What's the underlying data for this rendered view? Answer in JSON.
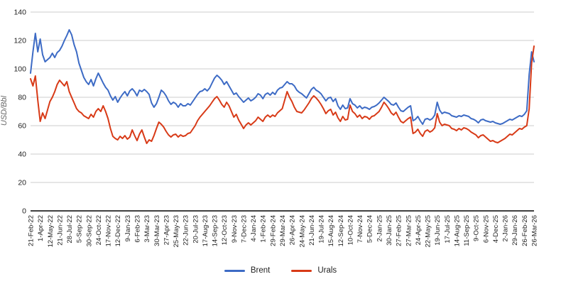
{
  "chart_data": {
    "type": "line",
    "title": "",
    "ylabel": "USD/Bbl",
    "xlabel": "",
    "ylim": [
      0,
      140
    ],
    "y_ticks": [
      0,
      20,
      40,
      60,
      80,
      100,
      120,
      140
    ],
    "grid": "horizontal",
    "legend_position": "bottom",
    "grid_color": "#cccccc",
    "axis_color": "#000000",
    "tick_label_color": "#222222",
    "axis_title_color": "#666666",
    "label_every": 4,
    "x_labels": [
      "21-Feb-22",
      "1-Apr-22",
      "12-May-22",
      "21-Jun-22",
      "28-Jul-22",
      "5-Sep-22",
      "30-Sep-22",
      "24-Oct-22",
      "17-Nov-22",
      "12-Dec-22",
      "9-Jan-23",
      "6-Feb-23",
      "3-Mar-23",
      "30-Mar-23",
      "27-Apr-23",
      "25-May-23",
      "22-Jun-23",
      "20-Jul-23",
      "17-Aug-23",
      "14-Sep-23",
      "12-Oct-23",
      "9-Nov-23",
      "7-Dec-23",
      "4-Jan-24",
      "1-Feb-24",
      "29-Feb-24",
      "29-Mar-24",
      "26-Apr-24",
      "24-May-24",
      "21-Jun-24",
      "19-Jul-24",
      "15-Aug-24",
      "12-Sep-24",
      "10-Oct-24",
      "7-Nov-24",
      "5-Dec-24",
      "2-Jan-25",
      "30-Jan-25",
      "27-Feb-25",
      "27-Mar-25",
      "24-Apr-25",
      "22-May-25",
      "19-Jun-25",
      "17-Jul-25",
      "14-Aug-25",
      "11-Sep-25",
      "9-Oct-25",
      "6-Nov-25",
      "4-Dec-25",
      "2-Jan-26",
      "29-Jan-26",
      "26-Feb-26",
      "26-Mar-26"
    ],
    "series": [
      {
        "name": "Brent",
        "color": "#3d6bc5",
        "values": [
          97,
          112,
          125,
          112,
          121,
          110,
          105,
          106.5,
          108,
          111,
          108,
          111.5,
          113,
          116,
          120,
          123.5,
          127.5,
          124,
          117,
          112,
          104,
          99,
          94,
          91,
          89,
          92.5,
          88,
          93,
          97,
          93.5,
          90,
          87,
          85,
          81,
          78,
          80.5,
          76.5,
          79.5,
          82,
          84,
          81,
          84.5,
          86,
          84,
          81,
          85,
          84,
          85.5,
          84,
          82,
          76,
          73,
          75.5,
          80,
          85,
          83.5,
          81,
          77.5,
          75,
          76.5,
          75.5,
          73,
          75.5,
          74,
          74,
          75.5,
          74.5,
          77,
          79.5,
          82,
          84,
          84.5,
          86,
          84.5,
          86.5,
          90,
          93.5,
          95.5,
          94,
          92,
          89,
          91,
          88,
          85,
          82,
          83,
          80.5,
          78.5,
          76.5,
          78,
          79.5,
          77.5,
          78.5,
          80,
          82.5,
          81.5,
          79,
          82,
          83,
          81.5,
          83.5,
          82,
          85,
          86.5,
          87,
          89,
          91,
          89.5,
          89.5,
          88,
          85,
          83.5,
          82.5,
          81,
          79.5,
          82.5,
          85.5,
          87,
          85,
          84,
          82.5,
          80,
          77.5,
          79.5,
          80,
          77,
          79,
          74,
          71.5,
          74.5,
          72,
          72.5,
          79,
          75.5,
          74.5,
          72.5,
          74,
          72,
          73,
          72.5,
          71.5,
          73,
          73.5,
          74.5,
          76,
          78,
          80,
          78.5,
          77,
          75,
          74.5,
          76,
          73,
          70.5,
          70,
          71.5,
          73,
          74,
          63.5,
          64.5,
          66.5,
          63.5,
          61,
          64.5,
          65,
          64,
          65,
          67.5,
          76.5,
          71,
          68.5,
          69.5,
          69,
          68.5,
          67,
          66.5,
          66,
          67,
          66.5,
          67.5,
          67,
          66.5,
          65,
          64.5,
          63.5,
          62,
          64,
          64.5,
          63.5,
          63,
          62.5,
          63,
          62,
          61.5,
          61,
          61.5,
          62.5,
          63.5,
          64.5,
          64,
          65,
          66,
          67,
          66.5,
          68,
          70.5,
          96,
          112,
          105
        ]
      },
      {
        "name": "Urals",
        "color": "#d83a17",
        "values": [
          93,
          88,
          95,
          78,
          63,
          69,
          65,
          71,
          77,
          80,
          84,
          89,
          92,
          90,
          88,
          91,
          84,
          80,
          76,
          72,
          70,
          69,
          67,
          66,
          65,
          68,
          66,
          70,
          72,
          70,
          74,
          70,
          65,
          58,
          52.5,
          51,
          50,
          52.5,
          51,
          53,
          50.5,
          52,
          57,
          53,
          49.5,
          54,
          57,
          52,
          47.5,
          50,
          49,
          53,
          58,
          62.5,
          61,
          59,
          56,
          53.5,
          52,
          53.5,
          54,
          52,
          53.5,
          52.5,
          53,
          54.5,
          55,
          57.5,
          60,
          63.5,
          66,
          68,
          70,
          72,
          74,
          76.5,
          79,
          80.5,
          78,
          75,
          73,
          76.5,
          74,
          70,
          66,
          68,
          64,
          61,
          58,
          60.5,
          62,
          60.5,
          62,
          63.5,
          66,
          64.5,
          63,
          66,
          67.5,
          66,
          67.5,
          66.5,
          69,
          70.5,
          72,
          78,
          84,
          80,
          77,
          73,
          70,
          69.5,
          69,
          71,
          73.5,
          76,
          79,
          81,
          79.5,
          77.5,
          75,
          72,
          68.5,
          70.5,
          71.5,
          67.5,
          69.5,
          65.5,
          63,
          66.5,
          64,
          64.5,
          74.5,
          70,
          68.5,
          66,
          67.5,
          65,
          66.5,
          66,
          64.5,
          66.5,
          67,
          68.5,
          70,
          73,
          76.5,
          74.5,
          72,
          69,
          67.5,
          69.5,
          66,
          63,
          62,
          63.5,
          65,
          66,
          54.5,
          55.5,
          57.5,
          54.5,
          52.5,
          56,
          57,
          55.5,
          56.5,
          58.5,
          68.5,
          62.5,
          60,
          61,
          60.5,
          60,
          58,
          57.5,
          56.5,
          58,
          57,
          58.5,
          58,
          57,
          55.5,
          54.5,
          53.5,
          51.5,
          53,
          53.5,
          52,
          50.5,
          49,
          49.5,
          48.5,
          48,
          49,
          50,
          51,
          52.5,
          54,
          53.5,
          55,
          56.5,
          58,
          57.5,
          59,
          60,
          72,
          104,
          116
        ]
      }
    ]
  }
}
